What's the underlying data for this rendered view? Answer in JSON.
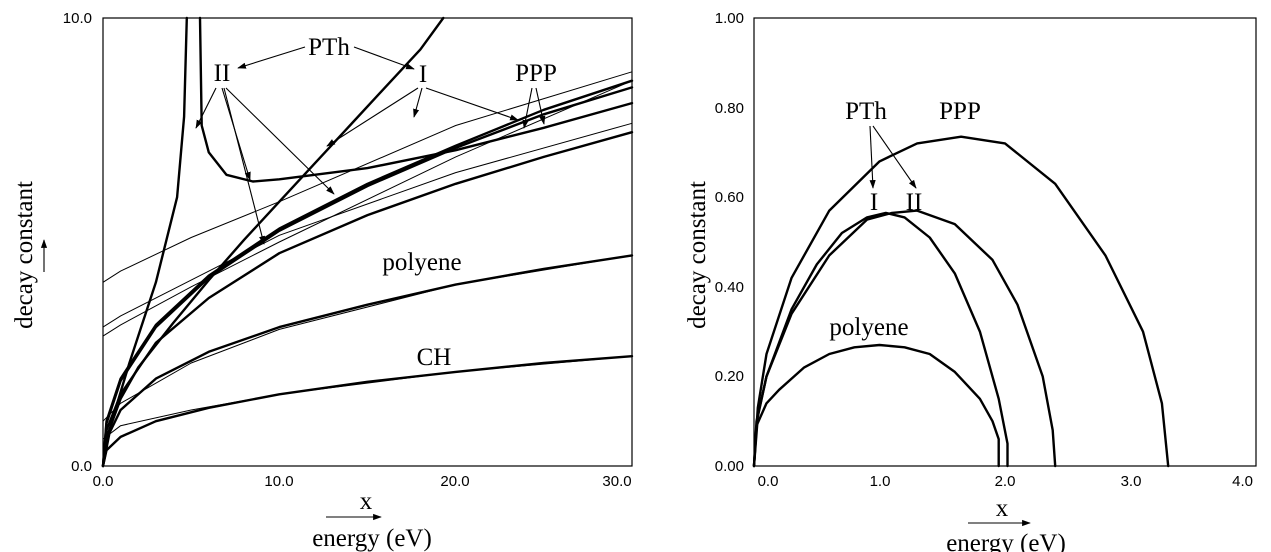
{
  "chart_data": [
    {
      "type": "line",
      "xlabel_var": "x",
      "xlabel": "energy (eV)",
      "ylabel": "decay constant",
      "xlim": [
        0,
        30
      ],
      "ylim": [
        0,
        10
      ],
      "xticks": [
        "0.0",
        "10.0",
        "20.0",
        "30.0"
      ],
      "yticks": [
        "0.0",
        "10.0"
      ],
      "annotations": [
        "PTh",
        "II",
        "I",
        "PPP",
        "polyene",
        "CH"
      ],
      "series": [
        {
          "name": "CH",
          "weight": "thick",
          "x": [
            0,
            0.2,
            1,
            3,
            6,
            10,
            15,
            20,
            25,
            30
          ],
          "y": [
            0,
            0.35,
            0.65,
            1.0,
            1.3,
            1.6,
            1.88,
            2.1,
            2.3,
            2.45
          ]
        },
        {
          "name": "CH",
          "weight": "thin",
          "x": [
            0,
            1,
            5,
            10,
            20,
            30
          ],
          "y": [
            0.6,
            0.9,
            1.25,
            1.6,
            2.1,
            2.45
          ]
        },
        {
          "name": "polyene",
          "weight": "thick",
          "x": [
            0,
            0.2,
            1,
            3,
            6,
            10,
            15,
            20,
            25,
            30
          ],
          "y": [
            0,
            0.6,
            1.25,
            1.95,
            2.55,
            3.1,
            3.6,
            4.05,
            4.4,
            4.7
          ]
        },
        {
          "name": "polyene",
          "weight": "thin",
          "x": [
            0,
            1,
            5,
            10,
            20,
            30
          ],
          "y": [
            1.0,
            1.4,
            2.3,
            3.05,
            4.05,
            4.7
          ]
        },
        {
          "name": "PTh II",
          "weight": "thick",
          "x": [
            0,
            0.5,
            1.5,
            3,
            4.2,
            4.6,
            4.75
          ],
          "y": [
            0,
            1.0,
            2.3,
            4.1,
            6.0,
            7.8,
            10
          ]
        },
        {
          "name": "PTh II",
          "weight": "thick",
          "x": [
            5.5,
            5.6,
            6,
            7,
            8.5,
            10,
            15,
            20,
            25,
            30
          ],
          "y": [
            10,
            7.6,
            7.0,
            6.5,
            6.35,
            6.4,
            6.65,
            7.05,
            7.55,
            8.1
          ]
        },
        {
          "name": "PTh II",
          "weight": "thick",
          "x": [
            0,
            0.2,
            1,
            3,
            6,
            10,
            15,
            20,
            25,
            30
          ],
          "y": [
            0,
            0.8,
            1.6,
            2.75,
            3.75,
            4.75,
            5.6,
            6.3,
            6.9,
            7.45
          ]
        },
        {
          "name": "PTh I",
          "weight": "thick",
          "x": [
            0,
            0.3,
            1,
            2,
            4,
            6,
            8,
            10,
            12,
            14,
            16,
            18,
            19.3
          ],
          "y": [
            0,
            0.75,
            1.5,
            2.2,
            3.2,
            4.15,
            5.05,
            5.9,
            6.75,
            7.6,
            8.45,
            9.3,
            10
          ]
        },
        {
          "name": "PTh I",
          "weight": "thick",
          "x": [
            0,
            0.2,
            1,
            3,
            6,
            10,
            15,
            20,
            25,
            30
          ],
          "y": [
            0,
            1.0,
            1.95,
            3.15,
            4.25,
            5.3,
            6.3,
            7.15,
            7.95,
            8.6
          ]
        },
        {
          "name": "PPP",
          "weight": "thick",
          "x": [
            0,
            0.2,
            1,
            3,
            6,
            10,
            15,
            20,
            25,
            30
          ],
          "y": [
            0,
            0.95,
            1.9,
            3.1,
            4.2,
            5.25,
            6.25,
            7.1,
            7.85,
            8.45
          ]
        },
        {
          "name": "PTh I",
          "weight": "thin",
          "x": [
            0,
            1,
            5,
            10,
            20,
            30
          ],
          "y": [
            4.1,
            4.35,
            5.1,
            5.9,
            7.6,
            8.8
          ]
        },
        {
          "name": "PTh II",
          "weight": "thin",
          "x": [
            0,
            1,
            5,
            10,
            20,
            30
          ],
          "y": [
            3.1,
            3.35,
            4.15,
            5.15,
            6.55,
            7.65
          ]
        },
        {
          "name": "PPP",
          "weight": "thin",
          "x": [
            0,
            1,
            5,
            10,
            20,
            30
          ],
          "y": [
            2.9,
            3.15,
            4.0,
            5.0,
            6.9,
            8.6
          ]
        }
      ]
    },
    {
      "type": "line",
      "xlabel_var": "x",
      "xlabel": "energy (eV)",
      "ylabel": "decay constant",
      "xlim": [
        0,
        4
      ],
      "ylim": [
        0,
        1
      ],
      "xticks": [
        "0.0",
        "1.0",
        "2.0",
        "3.0",
        "4.0"
      ],
      "yticks": [
        "0.00",
        "0.20",
        "0.40",
        "0.60",
        "0.80",
        "1.00"
      ],
      "annotations": [
        "PTh",
        "PPP",
        "I",
        "II",
        "polyene"
      ],
      "series": [
        {
          "name": "polyene",
          "x": [
            0,
            0.02,
            0.1,
            0.2,
            0.4,
            0.6,
            0.8,
            1.0,
            1.2,
            1.4,
            1.6,
            1.8,
            1.9,
            1.95,
            1.95
          ],
          "y": [
            0,
            0.09,
            0.14,
            0.17,
            0.22,
            0.25,
            0.265,
            0.27,
            0.265,
            0.25,
            0.21,
            0.15,
            0.1,
            0.06,
            0
          ]
        },
        {
          "name": "PTh I",
          "x": [
            0,
            0.02,
            0.1,
            0.3,
            0.5,
            0.7,
            0.9,
            1.05,
            1.2,
            1.4,
            1.6,
            1.8,
            1.95,
            2.02,
            2.02
          ],
          "y": [
            0,
            0.1,
            0.2,
            0.35,
            0.45,
            0.52,
            0.555,
            0.565,
            0.555,
            0.51,
            0.43,
            0.3,
            0.15,
            0.05,
            0
          ]
        },
        {
          "name": "PTh II",
          "x": [
            0,
            0.03,
            0.1,
            0.3,
            0.6,
            0.9,
            1.1,
            1.3,
            1.6,
            1.9,
            2.1,
            2.3,
            2.38,
            2.4
          ],
          "y": [
            0,
            0.11,
            0.2,
            0.34,
            0.47,
            0.55,
            0.565,
            0.57,
            0.54,
            0.46,
            0.36,
            0.2,
            0.08,
            0
          ]
        },
        {
          "name": "PPP",
          "x": [
            0,
            0.03,
            0.1,
            0.3,
            0.6,
            1.0,
            1.3,
            1.65,
            2.0,
            2.4,
            2.8,
            3.1,
            3.25,
            3.3
          ],
          "y": [
            0,
            0.13,
            0.25,
            0.42,
            0.57,
            0.68,
            0.72,
            0.735,
            0.72,
            0.63,
            0.47,
            0.3,
            0.14,
            0
          ]
        }
      ]
    }
  ]
}
